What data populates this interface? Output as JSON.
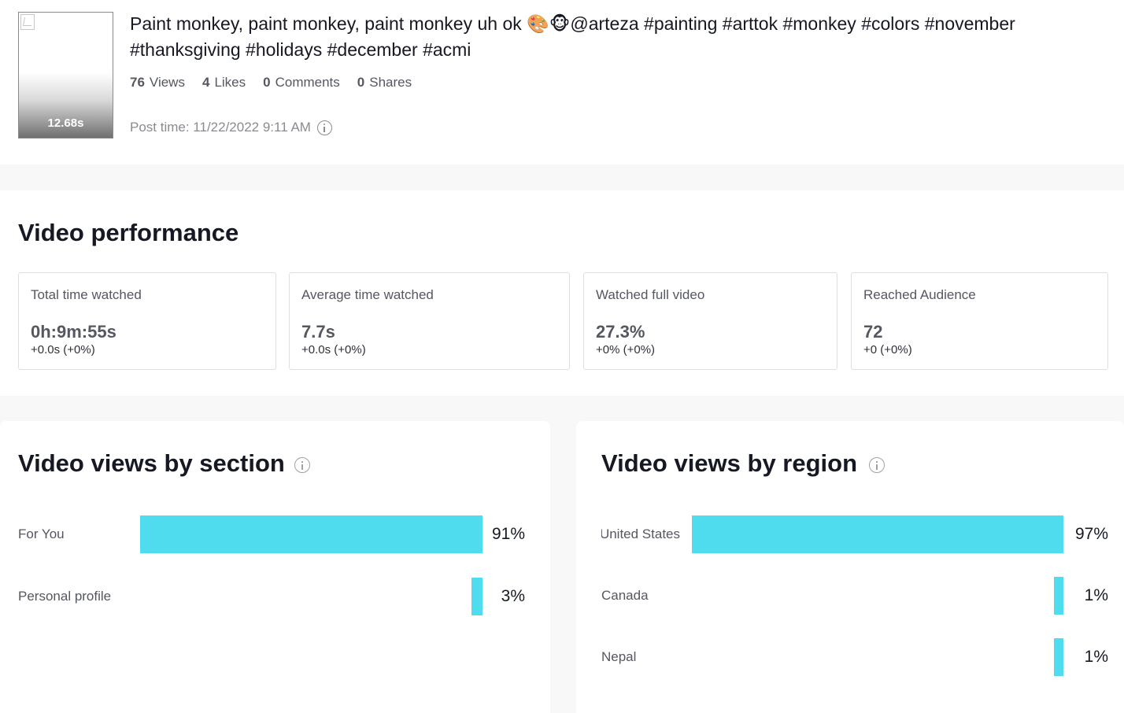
{
  "video": {
    "duration": "12.68s",
    "caption": "Paint monkey, paint monkey, paint monkey uh ok 🎨🐵@arteza #painting #arttok #monkey #colors #november #thanksgiving #holidays #december #acmi",
    "stats": [
      {
        "value": "76",
        "label": "Views"
      },
      {
        "value": "4",
        "label": "Likes"
      },
      {
        "value": "0",
        "label": "Comments"
      },
      {
        "value": "0",
        "label": "Shares"
      }
    ],
    "post_time": "Post time: 11/22/2022 9:11 AM"
  },
  "performance": {
    "title": "Video performance",
    "metrics": [
      {
        "label": "Total time watched",
        "value": "0h:9m:55s",
        "delta": "+0.0s (+0%)"
      },
      {
        "label": "Average time watched",
        "value": "7.7s",
        "delta": "+0.0s (+0%)"
      },
      {
        "label": "Watched full video",
        "value": "27.3%",
        "delta": "+0% (+0%)"
      },
      {
        "label": "Reached Audience",
        "value": "72",
        "delta": "+0 (+0%)"
      }
    ]
  },
  "chart_data": [
    {
      "type": "bar",
      "title": "Video views by section",
      "categories": [
        "For You",
        "Personal profile"
      ],
      "values": [
        91,
        3
      ],
      "value_labels": [
        "91%",
        "3%"
      ],
      "unit": "%",
      "bar_color": "#4fdcee"
    },
    {
      "type": "bar",
      "title": "Video views by region",
      "categories": [
        "United States",
        "Canada",
        "Nepal"
      ],
      "values": [
        97,
        1,
        1
      ],
      "value_labels": [
        "97%",
        "1%",
        "1%"
      ],
      "unit": "%",
      "bar_color": "#4fdcee"
    }
  ]
}
